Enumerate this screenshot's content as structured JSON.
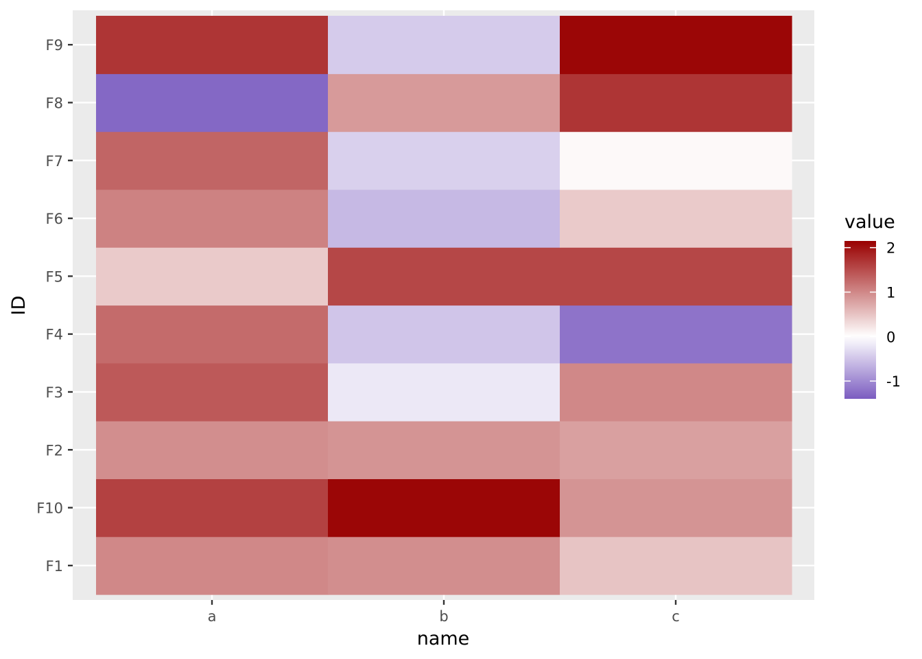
{
  "chart_data": {
    "type": "heatmap",
    "x_categories": [
      "a",
      "b",
      "c"
    ],
    "y_categories": [
      "F1",
      "F10",
      "F2",
      "F3",
      "F4",
      "F5",
      "F6",
      "F7",
      "F8",
      "F9"
    ],
    "values": {
      "F1": [
        1.0,
        0.95,
        0.5
      ],
      "F10": [
        1.6,
        2.1,
        0.9
      ],
      "F2": [
        0.95,
        0.9,
        0.8
      ],
      "F3": [
        1.4,
        -0.2,
        1.0
      ],
      "F4": [
        1.25,
        -0.5,
        -1.2
      ],
      "F5": [
        0.45,
        1.55,
        1.55
      ],
      "F6": [
        1.05,
        -0.6,
        0.45
      ],
      "F7": [
        1.3,
        -0.4,
        0.05
      ],
      "F8": [
        -1.3,
        0.85,
        1.7
      ],
      "F9": [
        1.7,
        -0.45,
        2.1
      ]
    },
    "xlabel": "name",
    "ylabel": "ID",
    "legend": {
      "title": "value",
      "ticks": [
        "2",
        "1",
        "0",
        "-1"
      ],
      "tick_values": [
        2,
        1,
        0,
        -1
      ],
      "range": [
        -1.4,
        2.15
      ],
      "position": "right"
    },
    "colors": {
      "low": "#7b5cc0",
      "mid": "#ffffff",
      "high": "#990000",
      "panel_bg": "#ebebeb",
      "grid": "#ffffff"
    },
    "grid": true
  }
}
